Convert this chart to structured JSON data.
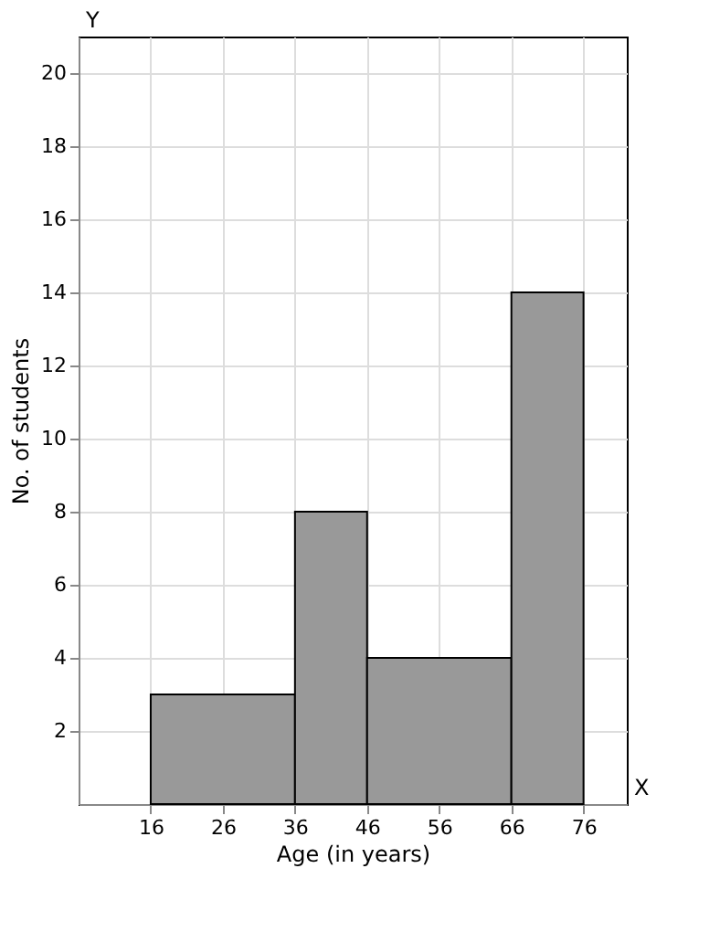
{
  "chart_data": {
    "type": "histogram",
    "xlabel": "Age (in years)",
    "ylabel": "No. of students",
    "bins": [
      16,
      36,
      46,
      66,
      76
    ],
    "values": [
      3,
      8,
      4,
      14
    ],
    "color": "#999999",
    "xlim": [
      6,
      82
    ],
    "ylim": [
      0,
      21
    ],
    "xticks": [
      16,
      26,
      36,
      46,
      56,
      66,
      76
    ],
    "yticks": [
      2,
      4,
      6,
      8,
      10,
      12,
      14,
      16,
      18,
      20
    ],
    "grid": true,
    "annotations": [
      "X",
      "Y"
    ]
  }
}
